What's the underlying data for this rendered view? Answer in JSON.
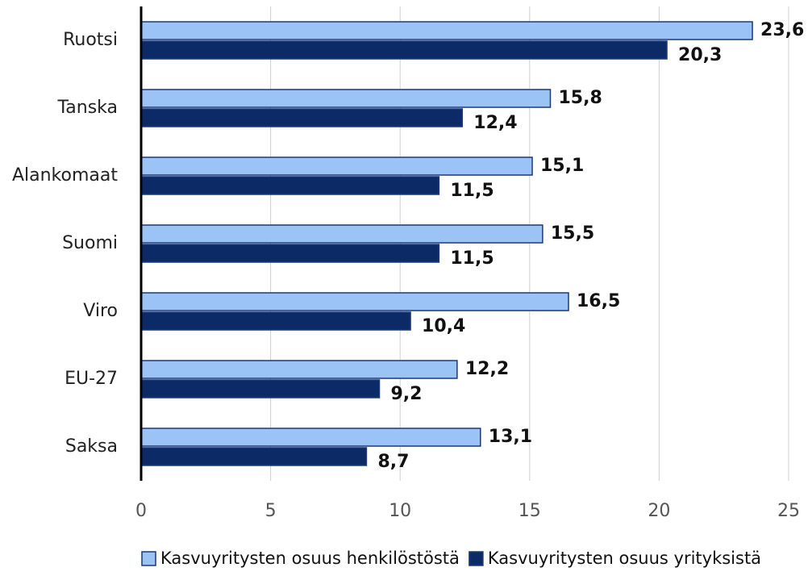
{
  "chart_data": {
    "type": "hbar",
    "categories": [
      "Ruotsi",
      "Tanska",
      "Alankomaat",
      "Suomi",
      "Viro",
      "EU-27",
      "Saksa"
    ],
    "series": [
      {
        "name": "Kasvuyritysten osuus henkilöstöstä",
        "color": "#9cc3f5",
        "values": [
          23.6,
          15.8,
          15.1,
          15.5,
          16.5,
          12.2,
          13.1
        ],
        "value_labels": [
          "23,6",
          "15,8",
          "15,1",
          "15,5",
          "16,5",
          "12,2",
          "13,1"
        ]
      },
      {
        "name": "Kasvuyritysten osuus yrityksistä",
        "color": "#0b2a66",
        "values": [
          20.3,
          12.4,
          11.5,
          11.5,
          10.4,
          9.2,
          8.7
        ],
        "value_labels": [
          "20,3",
          "12,4",
          "11,5",
          "11,5",
          "10,4",
          "9,2",
          "8,7"
        ]
      }
    ],
    "xlim": [
      0,
      25
    ],
    "xticks": [
      0,
      5,
      10,
      15,
      20,
      25
    ],
    "grid": true,
    "legend": "bottom"
  }
}
